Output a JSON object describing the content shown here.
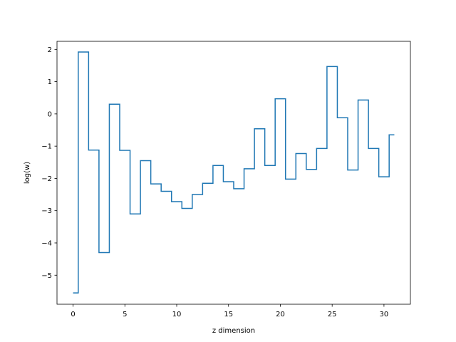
{
  "chart_data": {
    "type": "line",
    "drawstyle": "steps-mid",
    "title": "",
    "xlabel": "z dimension",
    "ylabel": "log(w)",
    "xlim": [
      -1.55,
      32.55
    ],
    "ylim": [
      -5.9,
      2.25
    ],
    "xticks": [
      0,
      5,
      10,
      15,
      20,
      25,
      30
    ],
    "xtick_labels": [
      "0",
      "5",
      "10",
      "15",
      "20",
      "25",
      "30"
    ],
    "yticks": [
      2,
      1,
      0,
      -1,
      -2,
      -3,
      -4,
      -5
    ],
    "ytick_labels": [
      "2",
      "1",
      "0",
      "−1",
      "−2",
      "−3",
      "−4",
      "−5"
    ],
    "grid": false,
    "legend": "none",
    "line_color": "#1f77b4",
    "x": [
      0,
      1,
      2,
      3,
      4,
      5,
      6,
      7,
      8,
      9,
      10,
      11,
      12,
      13,
      14,
      15,
      16,
      17,
      18,
      19,
      20,
      21,
      22,
      23,
      24,
      25,
      26,
      27,
      28,
      29,
      30,
      31
    ],
    "y": [
      -5.55,
      1.92,
      -1.12,
      -4.3,
      0.3,
      -1.13,
      -3.1,
      -1.45,
      -2.17,
      -2.4,
      -2.72,
      -2.93,
      -2.5,
      -2.15,
      -1.6,
      -2.1,
      -2.32,
      -1.7,
      -0.46,
      -1.6,
      0.47,
      -2.02,
      -1.23,
      -1.72,
      -1.07,
      1.47,
      -0.12,
      -1.74,
      0.43,
      -1.07,
      -1.95,
      -0.65
    ]
  }
}
